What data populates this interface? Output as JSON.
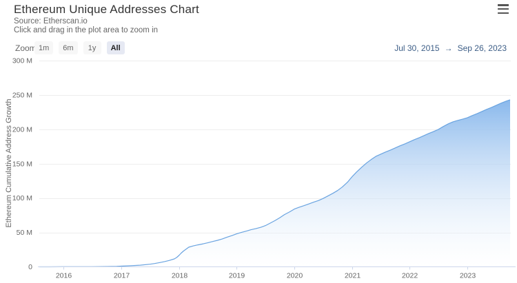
{
  "header": {
    "title": "Ethereum Unique Addresses Chart",
    "source_line": "Source: Etherscan.io",
    "hint_line": "Click and drag in the plot area to zoom in"
  },
  "range_selector": {
    "zoom_label": "Zoom",
    "buttons": [
      {
        "label": "1m",
        "selected": false
      },
      {
        "label": "6m",
        "selected": false
      },
      {
        "label": "1y",
        "selected": false
      },
      {
        "label": "All",
        "selected": true
      }
    ],
    "date_from": "Jul 30, 2015",
    "date_arrow": "→",
    "date_to": "Sep 26, 2023"
  },
  "chart_data": {
    "type": "area",
    "title": "Ethereum Unique Addresses Chart",
    "ylabel": "Ethereum Cumulative Address Growth",
    "xlabel": "",
    "x_start_date": "Jul 30, 2015",
    "x_end_date": "Sep 26, 2023",
    "x_range_decimal_years": [
      2015.58,
      2023.74
    ],
    "ylim": [
      0,
      300
    ],
    "y_unit": "millions of addresses",
    "grid": "horizontal-only",
    "legend": false,
    "yticks": [
      {
        "value": 0,
        "label": "0"
      },
      {
        "value": 50,
        "label": "50 M"
      },
      {
        "value": 100,
        "label": "100 M"
      },
      {
        "value": 150,
        "label": "150 M"
      },
      {
        "value": 200,
        "label": "200 M"
      },
      {
        "value": 250,
        "label": "250 M"
      },
      {
        "value": 300,
        "label": "300 M"
      }
    ],
    "xticks": [
      {
        "value": 2016,
        "label": "2016"
      },
      {
        "value": 2017,
        "label": "2017"
      },
      {
        "value": 2018,
        "label": "2018"
      },
      {
        "value": 2019,
        "label": "2019"
      },
      {
        "value": 2020,
        "label": "2020"
      },
      {
        "value": 2021,
        "label": "2021"
      },
      {
        "value": 2022,
        "label": "2022"
      },
      {
        "value": 2023,
        "label": "2023"
      }
    ],
    "series": [
      {
        "name": "Ethereum Cumulative Address Growth",
        "unit": "millions",
        "points": [
          [
            2015.58,
            0.0
          ],
          [
            2015.75,
            0.05
          ],
          [
            2016.0,
            0.1
          ],
          [
            2016.25,
            0.15
          ],
          [
            2016.5,
            0.22
          ],
          [
            2016.75,
            0.45
          ],
          [
            2016.92,
            0.75
          ],
          [
            2017.0,
            1.0
          ],
          [
            2017.17,
            1.6
          ],
          [
            2017.33,
            2.4
          ],
          [
            2017.5,
            3.8
          ],
          [
            2017.58,
            4.8
          ],
          [
            2017.67,
            6.2
          ],
          [
            2017.75,
            7.6
          ],
          [
            2017.83,
            9.2
          ],
          [
            2017.92,
            11.5
          ],
          [
            2017.96,
            13.5
          ],
          [
            2018.0,
            16.5
          ],
          [
            2018.04,
            20
          ],
          [
            2018.08,
            23
          ],
          [
            2018.13,
            26
          ],
          [
            2018.17,
            28.5
          ],
          [
            2018.25,
            30.5
          ],
          [
            2018.33,
            32
          ],
          [
            2018.42,
            33.5
          ],
          [
            2018.5,
            35
          ],
          [
            2018.58,
            36.8
          ],
          [
            2018.67,
            38.6
          ],
          [
            2018.75,
            40.5
          ],
          [
            2018.83,
            43
          ],
          [
            2018.92,
            45.5
          ],
          [
            2019.0,
            48
          ],
          [
            2019.08,
            50
          ],
          [
            2019.17,
            52
          ],
          [
            2019.25,
            54
          ],
          [
            2019.33,
            55.5
          ],
          [
            2019.42,
            57.5
          ],
          [
            2019.5,
            60
          ],
          [
            2019.58,
            63.5
          ],
          [
            2019.67,
            67.5
          ],
          [
            2019.75,
            71.5
          ],
          [
            2019.83,
            76
          ],
          [
            2019.92,
            80
          ],
          [
            2020.0,
            84
          ],
          [
            2020.08,
            86.5
          ],
          [
            2020.17,
            89
          ],
          [
            2020.25,
            91.5
          ],
          [
            2020.33,
            94
          ],
          [
            2020.42,
            96.5
          ],
          [
            2020.5,
            99.5
          ],
          [
            2020.58,
            103
          ],
          [
            2020.67,
            107
          ],
          [
            2020.75,
            111
          ],
          [
            2020.83,
            116
          ],
          [
            2020.92,
            123
          ],
          [
            2021.0,
            131
          ],
          [
            2021.08,
            138
          ],
          [
            2021.17,
            145
          ],
          [
            2021.25,
            151
          ],
          [
            2021.33,
            156
          ],
          [
            2021.42,
            161
          ],
          [
            2021.5,
            164
          ],
          [
            2021.58,
            167
          ],
          [
            2021.67,
            170
          ],
          [
            2021.75,
            173
          ],
          [
            2021.83,
            176
          ],
          [
            2021.92,
            179
          ],
          [
            2022.0,
            182
          ],
          [
            2022.08,
            185
          ],
          [
            2022.17,
            188
          ],
          [
            2022.25,
            191
          ],
          [
            2022.33,
            194
          ],
          [
            2022.42,
            197
          ],
          [
            2022.5,
            200
          ],
          [
            2022.58,
            204
          ],
          [
            2022.67,
            208
          ],
          [
            2022.75,
            211
          ],
          [
            2022.83,
            213
          ],
          [
            2022.92,
            215
          ],
          [
            2023.0,
            217
          ],
          [
            2023.08,
            220
          ],
          [
            2023.17,
            223
          ],
          [
            2023.25,
            226
          ],
          [
            2023.33,
            229
          ],
          [
            2023.42,
            232
          ],
          [
            2023.5,
            235
          ],
          [
            2023.58,
            238
          ],
          [
            2023.67,
            241
          ],
          [
            2023.74,
            243
          ]
        ]
      }
    ],
    "colors": {
      "line": "#69a3e0",
      "area_top": "#89b8ec",
      "area_bottom": "#ffffff",
      "grid": "#ededed",
      "axis": "#ccd6eb",
      "tick_text": "#666666"
    }
  }
}
